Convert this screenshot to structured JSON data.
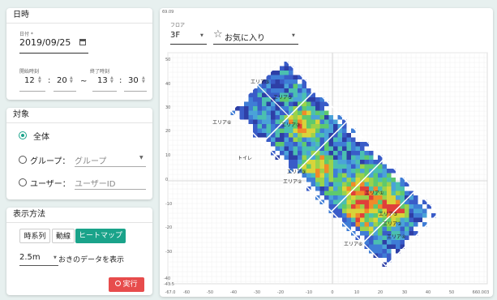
{
  "date_panel": {
    "title": "日時",
    "date_label": "日付 *",
    "date_value": "2019/09/25",
    "start_label": "開始時刻",
    "end_label": "終了時刻",
    "start_hour": "12",
    "start_min": "20",
    "end_hour": "13",
    "end_min": "30",
    "colon": ":",
    "tilde": "~"
  },
  "target_panel": {
    "title": "対象",
    "option_all": "全体",
    "option_group": "グループ：",
    "group_placeholder": "グループ",
    "option_user": "ユーザー：",
    "user_placeholder": "ユーザーID",
    "selected": "all"
  },
  "display_panel": {
    "title": "表示方法",
    "tabs": [
      "時系列",
      "動線",
      "ヒートマップ"
    ],
    "active_tab": "ヒートマップ",
    "interval_value": "2.5m",
    "interval_suffix": "おきのデータを表示",
    "run_button": "実行"
  },
  "map": {
    "floor_label": "フロア",
    "floor_value": "3F",
    "favorite_label": "お気に入り",
    "top_value": "69.09",
    "bottom_left_values": [
      "-40",
      "-43.5"
    ],
    "x_ticks": [
      "-67.0",
      "-60",
      "-50",
      "-40",
      "-30",
      "-20",
      "-10",
      "0",
      "10",
      "20",
      "30",
      "40",
      "50",
      "660.003"
    ],
    "y_ticks": [
      "50",
      "40",
      "30",
      "20",
      "10",
      "0",
      "-10",
      "-20",
      "-30"
    ],
    "area_labels": [
      "エリア⑤",
      "エリア⑤",
      "エリア⑥",
      "エリア⑦",
      "エリア②",
      "エリア①",
      "エリア③",
      "エリア②",
      "トイレ",
      "エリア⑥",
      "エリア④",
      "エリア③"
    ]
  }
}
